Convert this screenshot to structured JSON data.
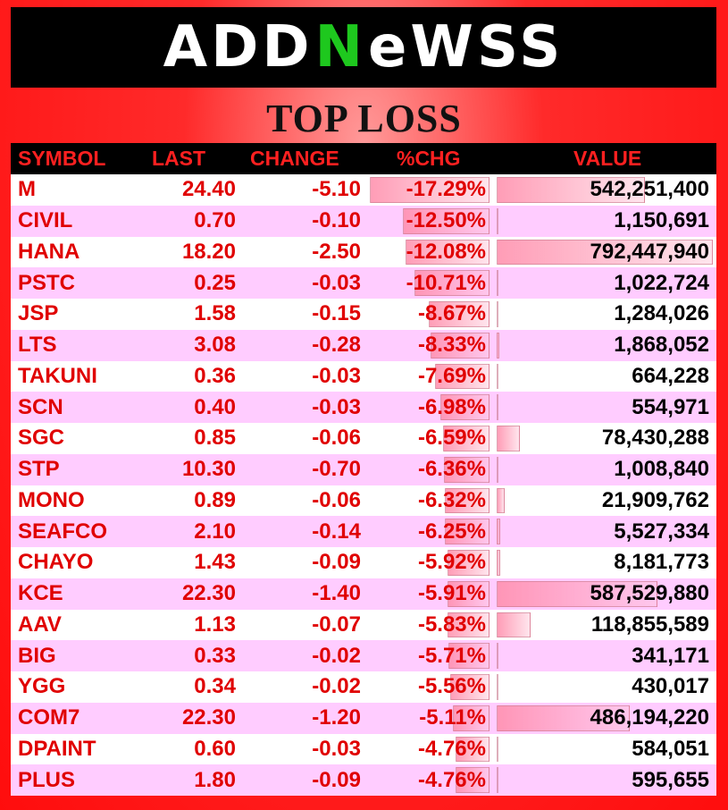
{
  "logo": {
    "part1": "ADD",
    "part2": "N",
    "part3": "eWSS"
  },
  "title": "TOP LOSS",
  "headers": {
    "symbol": "SYMBOL",
    "last": "LAST",
    "change": "CHANGE",
    "pct": "%CHG",
    "value": "VALUE"
  },
  "colors": {
    "red": "#e00000",
    "header_bg": "#000000",
    "row_alt": "#ffccff",
    "logo_accent": "#1ec81e"
  },
  "rows": [
    {
      "symbol": "M",
      "last": "24.40",
      "change": "-5.10",
      "pct": "-17.29%",
      "value": "542,251,400",
      "pct_num": 17.29,
      "value_num": 542251400
    },
    {
      "symbol": "CIVIL",
      "last": "0.70",
      "change": "-0.10",
      "pct": "-12.50%",
      "value": "1,150,691",
      "pct_num": 12.5,
      "value_num": 1150691
    },
    {
      "symbol": "HANA",
      "last": "18.20",
      "change": "-2.50",
      "pct": "-12.08%",
      "value": "792,447,940",
      "pct_num": 12.08,
      "value_num": 792447940
    },
    {
      "symbol": "PSTC",
      "last": "0.25",
      "change": "-0.03",
      "pct": "-10.71%",
      "value": "1,022,724",
      "pct_num": 10.71,
      "value_num": 1022724
    },
    {
      "symbol": "JSP",
      "last": "1.58",
      "change": "-0.15",
      "pct": "-8.67%",
      "value": "1,284,026",
      "pct_num": 8.67,
      "value_num": 1284026
    },
    {
      "symbol": "LTS",
      "last": "3.08",
      "change": "-0.28",
      "pct": "-8.33%",
      "value": "1,868,052",
      "pct_num": 8.33,
      "value_num": 1868052
    },
    {
      "symbol": "TAKUNI",
      "last": "0.36",
      "change": "-0.03",
      "pct": "-7.69%",
      "value": "664,228",
      "pct_num": 7.69,
      "value_num": 664228
    },
    {
      "symbol": "SCN",
      "last": "0.40",
      "change": "-0.03",
      "pct": "-6.98%",
      "value": "554,971",
      "pct_num": 6.98,
      "value_num": 554971
    },
    {
      "symbol": "SGC",
      "last": "0.85",
      "change": "-0.06",
      "pct": "-6.59%",
      "value": "78,430,288",
      "pct_num": 6.59,
      "value_num": 78430288
    },
    {
      "symbol": "STP",
      "last": "10.30",
      "change": "-0.70",
      "pct": "-6.36%",
      "value": "1,008,840",
      "pct_num": 6.36,
      "value_num": 1008840
    },
    {
      "symbol": "MONO",
      "last": "0.89",
      "change": "-0.06",
      "pct": "-6.32%",
      "value": "21,909,762",
      "pct_num": 6.32,
      "value_num": 21909762
    },
    {
      "symbol": "SEAFCO",
      "last": "2.10",
      "change": "-0.14",
      "pct": "-6.25%",
      "value": "5,527,334",
      "pct_num": 6.25,
      "value_num": 5527334
    },
    {
      "symbol": "CHAYO",
      "last": "1.43",
      "change": "-0.09",
      "pct": "-5.92%",
      "value": "8,181,773",
      "pct_num": 5.92,
      "value_num": 8181773
    },
    {
      "symbol": "KCE",
      "last": "22.30",
      "change": "-1.40",
      "pct": "-5.91%",
      "value": "587,529,880",
      "pct_num": 5.91,
      "value_num": 587529880
    },
    {
      "symbol": "AAV",
      "last": "1.13",
      "change": "-0.07",
      "pct": "-5.83%",
      "value": "118,855,589",
      "pct_num": 5.83,
      "value_num": 118855589
    },
    {
      "symbol": "BIG",
      "last": "0.33",
      "change": "-0.02",
      "pct": "-5.71%",
      "value": "341,171",
      "pct_num": 5.71,
      "value_num": 341171
    },
    {
      "symbol": "YGG",
      "last": "0.34",
      "change": "-0.02",
      "pct": "-5.56%",
      "value": "430,017",
      "pct_num": 5.56,
      "value_num": 430017
    },
    {
      "symbol": "COM7",
      "last": "22.30",
      "change": "-1.20",
      "pct": "-5.11%",
      "value": "486,194,220",
      "pct_num": 5.11,
      "value_num": 486194220
    },
    {
      "symbol": "DPAINT",
      "last": "0.60",
      "change": "-0.03",
      "pct": "-4.76%",
      "value": "584,051",
      "pct_num": 4.76,
      "value_num": 584051
    },
    {
      "symbol": "PLUS",
      "last": "1.80",
      "change": "-0.09",
      "pct": "-4.76%",
      "value": "595,655",
      "pct_num": 4.76,
      "value_num": 595655
    }
  ]
}
